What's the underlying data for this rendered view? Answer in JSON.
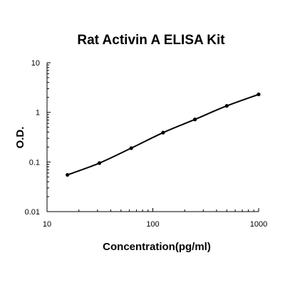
{
  "chart_data": {
    "type": "scatter",
    "title": "Rat Activin A ELISA Kit",
    "xlabel": "Concentration(pg/ml)",
    "ylabel": "O.D.",
    "xscale": "log",
    "yscale": "log",
    "xlim": [
      10,
      1000
    ],
    "ylim": [
      0.01,
      10
    ],
    "x_ticks": [
      "10",
      "100",
      "1000"
    ],
    "y_ticks": [
      "10",
      "1",
      "0.1",
      "0.01"
    ],
    "grid": false,
    "legend": "none",
    "series": [
      {
        "x": [
          15.6,
          31.25,
          62.5,
          125,
          250,
          500,
          1000
        ],
        "y": [
          0.055,
          0.095,
          0.19,
          0.39,
          0.72,
          1.35,
          2.3
        ],
        "fit_line": true
      }
    ]
  }
}
